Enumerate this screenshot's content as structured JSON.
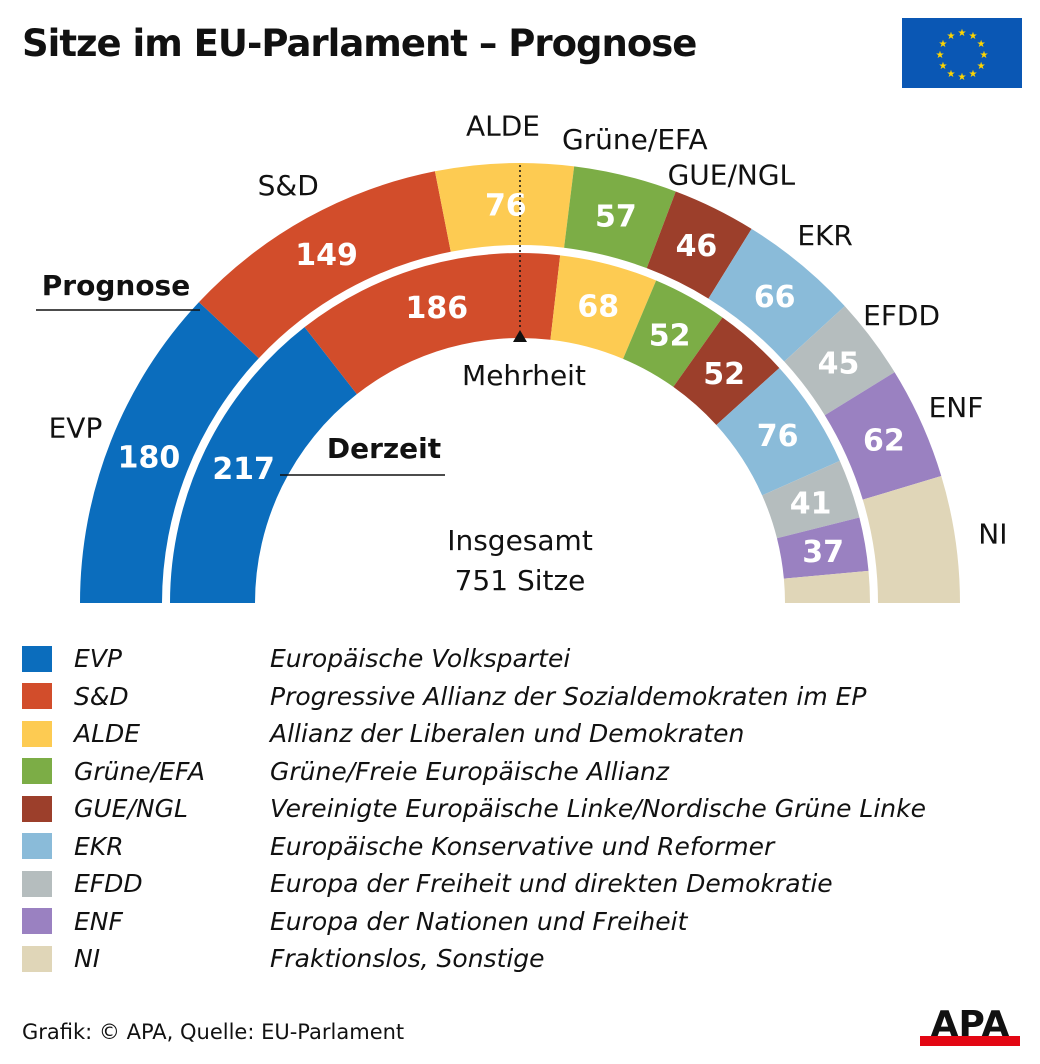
{
  "title": "Sitze im EU-Parlament – Prognose",
  "chart_data": {
    "type": "pie",
    "subtype": "parliament-semicircle",
    "total_label": [
      "Insgesamt",
      "751 Sitze"
    ],
    "total": 751,
    "majority_label": "Mehrheit",
    "rings": [
      {
        "name": "Prognose",
        "values": [
          180,
          149,
          76,
          57,
          46,
          66,
          45,
          62,
          70
        ],
        "labeled": [
          true,
          true,
          true,
          true,
          true,
          true,
          true,
          true,
          false
        ]
      },
      {
        "name": "Derzeit",
        "values": [
          217,
          186,
          68,
          52,
          52,
          76,
          41,
          37,
          22
        ],
        "labeled": [
          true,
          true,
          true,
          true,
          true,
          true,
          true,
          true,
          false
        ]
      }
    ],
    "categories": [
      "EVP",
      "S&D",
      "ALDE",
      "Grüne/EFA",
      "GUE/NGL",
      "EKR",
      "EFDD",
      "ENF",
      "NI"
    ],
    "colors": [
      "#0b6dbd",
      "#d24d2b",
      "#fdcb52",
      "#7cad46",
      "#9c3f2b",
      "#8abbd9",
      "#b5bdbe",
      "#9a81c1",
      "#e0d6b8"
    ]
  },
  "legend": [
    {
      "abbr": "EVP",
      "full": "Europäische Volkspartei"
    },
    {
      "abbr": "S&D",
      "full": "Progressive Allianz der Sozialdemokraten im EP"
    },
    {
      "abbr": "ALDE",
      "full": "Allianz der Liberalen und Demokraten"
    },
    {
      "abbr": "Grüne/EFA",
      "full": "Grüne/Freie Europäische Allianz"
    },
    {
      "abbr": "GUE/NGL",
      "full": "Vereinigte Europäische Linke/Nordische Grüne Linke"
    },
    {
      "abbr": "EKR",
      "full": "Europäische Konservative und Reformer"
    },
    {
      "abbr": "EFDD",
      "full": "Europa der Freiheit und direkten Demokratie"
    },
    {
      "abbr": "ENF",
      "full": "Europa der Nationen und Freiheit"
    },
    {
      "abbr": "NI",
      "full": "Fraktionslos, Sonstige"
    }
  ],
  "footer": "Grafik: © APA, Quelle: EU-Parlament",
  "logo": "APA"
}
